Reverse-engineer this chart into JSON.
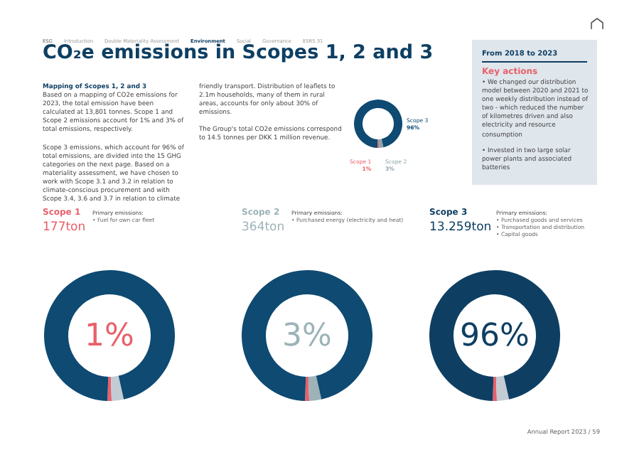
{
  "chart_data": [
    {
      "type": "donut",
      "title": "CO₂e emissions in Scopes 1, 2 and 3",
      "categories": [
        "Scope 1",
        "Scope 2",
        "Scope 3"
      ],
      "values": [
        1,
        3,
        96
      ],
      "colors": [
        "#e8606a",
        "#8fa6ad",
        "#0e4a72"
      ],
      "value_labels": [
        "1%",
        "3%",
        "96%"
      ],
      "annotations": [
        "ESG",
        "Introduction",
        "Double Materiality Assessment",
        "Environment",
        "Social",
        "Governance",
        "ESRS 31",
        "Mapping of Scopes 1, 2 and 3",
        "Based on a mapping of CO2e emissions for 2023, the total emission have been calculated at 13,801 tonnes. Scope 1 and Scope 2 emissions account for 1% and 3% of total emissions, respectively.",
        "Scope 3 emissions, which account for 96% of total emissions, are divided into the 15 GHG categories on the next page. Based on a materiality assessment, we have chosen to work with Scope 3.1 and 3.2 in relation to climate-conscious procurement and with Scope 3.4, 3.6 and 3.7 in relation to climate friendly transport. Distribution of leaflets to 2.1m households, many of them in rural areas, accounts for only about 30% of emissions.",
        "The Group's total CO2e emissions correspond to 14.5 tonnes per DKK 1 million revenue.",
        "Annual Report 2023 / 59"
      ]
    },
    {
      "type": "donut",
      "title": "Scope 1",
      "subtitle": "177ton",
      "categories": [
        null,
        null,
        null
      ],
      "values": [
        1,
        3,
        96
      ],
      "colors": [
        "#e8606a",
        "#c3ccd4",
        "#0e4a72"
      ],
      "value_labels": [
        "1%",
        null,
        null
      ],
      "annotations": [
        "Primary emissions:",
        "• Fuel for own car fleet"
      ]
    },
    {
      "type": "donut",
      "title": "Scope 2",
      "subtitle": "364ton",
      "categories": [
        null,
        null,
        null
      ],
      "values": [
        1,
        3,
        96
      ],
      "colors": [
        "#e8606a",
        "#9db3b8",
        "#0e4a72"
      ],
      "value_labels": [
        null,
        "3%",
        null
      ],
      "annotations": [
        "Primary emissions:",
        "• Purchased energy (electricity and heat)"
      ]
    },
    {
      "type": "donut",
      "title": "Scope 3",
      "subtitle": "13.259ton",
      "categories": [
        null,
        null,
        null
      ],
      "values": [
        1,
        3,
        96
      ],
      "colors": [
        "#e8606a",
        "#c3ccd4",
        "#0e3f63"
      ],
      "value_labels": [
        null,
        null,
        "96%"
      ],
      "annotations": [
        "Primary emissions:",
        "• Purchased goods and services",
        "• Transportation and distribution",
        "• Capital goods"
      ]
    },
    {
      "type": "other",
      "title": "From 2018 to 2023",
      "subtitle": "Key actions",
      "annotations": [
        "• We changed our distribution model between 2020 and 2021 to one weekly distribution instead of two - which reduced the number of kilometres driven and also electricity and resource consumption",
        "• Invested in two large solar power plants and associated batteries"
      ]
    }
  ]
}
